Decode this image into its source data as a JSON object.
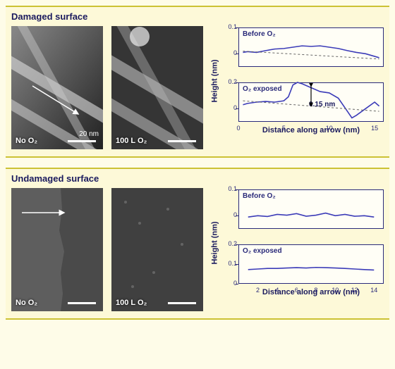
{
  "panels": {
    "damaged": {
      "title": "Damaged surface",
      "left_img_label": "No O₂",
      "right_img_label": "100 L O₂",
      "scalebar_label": "20 nm",
      "chart_top": {
        "subtitle": "Before O₂",
        "ylim": [
          -0.05,
          0.1
        ],
        "yticks": [
          0,
          0.1
        ],
        "xlim": [
          0,
          16
        ],
        "line_color": "#3b3bb8",
        "dashed_color": "#666",
        "data_x": [
          0.5,
          1,
          2,
          3,
          4,
          5,
          6,
          7,
          8,
          9,
          10,
          11,
          12,
          13,
          14,
          15,
          15.5
        ],
        "data_y": [
          0.005,
          0.008,
          0.005,
          0.012,
          0.018,
          0.02,
          0.025,
          0.03,
          0.028,
          0.03,
          0.025,
          0.02,
          0.012,
          0.005,
          0.0,
          -0.01,
          -0.015
        ],
        "dash_y0": 0.01,
        "dash_y1": -0.02
      },
      "chart_bot": {
        "subtitle": "O₂ exposed",
        "ylim": [
          -0.1,
          0.2
        ],
        "yticks": [
          0,
          0.2
        ],
        "xlim": [
          0,
          16
        ],
        "xticks": [
          0,
          5,
          10,
          15
        ],
        "line_color": "#3b3bb8",
        "dashed_color": "#666",
        "data_x": [
          0.5,
          1,
          2,
          3,
          4,
          5,
          5.5,
          6,
          6.5,
          7,
          8,
          9,
          10,
          11,
          12,
          12.5,
          13,
          14,
          15,
          15.5
        ],
        "data_y": [
          0.03,
          0.04,
          0.05,
          0.055,
          0.05,
          0.06,
          0.09,
          0.18,
          0.2,
          0.19,
          0.16,
          0.13,
          0.12,
          0.08,
          -0.02,
          -0.07,
          -0.05,
          0.0,
          0.05,
          0.02
        ],
        "dash_y0": 0.06,
        "dash_y1": -0.02,
        "annotation": "0.15 nm"
      },
      "xlabel": "Distance along arrow (nm)",
      "ylabel": "Height (nm)"
    },
    "undamaged": {
      "title": "Undamaged surface",
      "left_img_label": "No O₂",
      "right_img_label": "100 L O₂",
      "chart_top": {
        "subtitle": "Before O₂",
        "ylim": [
          -0.05,
          0.1
        ],
        "yticks": [
          0,
          0.1
        ],
        "xlim": [
          0,
          15
        ],
        "line_color": "#3b3bb8",
        "data_x": [
          1,
          2,
          3,
          4,
          5,
          6,
          7,
          8,
          9,
          10,
          11,
          12,
          13,
          14
        ],
        "data_y": [
          -0.005,
          0.0,
          -0.003,
          0.005,
          0.002,
          0.008,
          -0.002,
          0.002,
          0.01,
          0.0,
          0.005,
          -0.002,
          0.0,
          -0.005
        ]
      },
      "chart_bot": {
        "subtitle": "O₂ exposed",
        "ylim": [
          0,
          0.2
        ],
        "yticks": [
          0,
          0.1,
          0.2
        ],
        "xlim": [
          0,
          15
        ],
        "xticks": [
          2,
          4,
          6,
          8,
          10,
          12,
          14
        ],
        "line_color": "#3b3bb8",
        "data_x": [
          1,
          2,
          3,
          4,
          5,
          6,
          7,
          8,
          9,
          10,
          11,
          12,
          13,
          14
        ],
        "data_y": [
          0.072,
          0.075,
          0.078,
          0.078,
          0.08,
          0.082,
          0.08,
          0.083,
          0.082,
          0.08,
          0.078,
          0.075,
          0.072,
          0.07
        ]
      },
      "xlabel": "Distance along arrow (nm)",
      "ylabel": "Height (nm)"
    }
  },
  "stm_colors": {
    "dark": "#2b2b2b",
    "mid": "#5a5a5a",
    "light": "#bdbdbd",
    "hi": "#e8e8e8"
  }
}
